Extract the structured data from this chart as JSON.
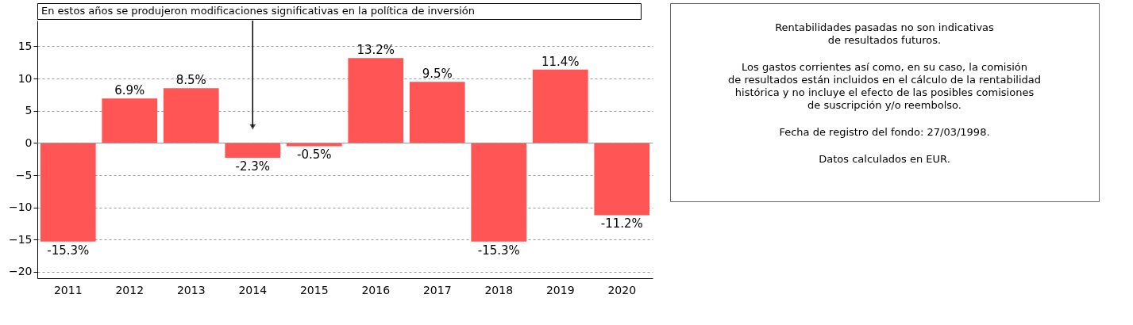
{
  "chart_data": {
    "type": "bar",
    "categories": [
      "2011",
      "2012",
      "2013",
      "2014",
      "2015",
      "2016",
      "2017",
      "2018",
      "2019",
      "2020"
    ],
    "values": [
      -15.3,
      6.9,
      8.5,
      -2.3,
      -0.5,
      13.2,
      9.5,
      -15.3,
      11.4,
      -11.2
    ],
    "value_labels": [
      "-15.3%",
      "6.9%",
      "8.5%",
      "-2.3%",
      "-0.5%",
      "13.2%",
      "9.5%",
      "-15.3%",
      "11.4%",
      "-11.2%"
    ],
    "color": "#ff5555",
    "ylim": [
      -21,
      19
    ],
    "yticks": [
      -20,
      -15,
      -10,
      -5,
      0,
      5,
      10,
      15
    ],
    "grid": "y",
    "annotations": [
      {
        "text": "En estos años se produjeron modificaciones significativas en la política de inversión",
        "x": "2014",
        "y": 2.5
      },
      "Rentabilidades pasadas no son indicativas\nde resultados futuros.",
      "Los gastos corrientes así como, en su caso, la comisión\nde resultados están incluidos en el cálculo de la rentabilidad\nhistórica y no incluye el efecto de las posibles comisiones\nde suscripción y/o reembolso.",
      "Fecha de registro del fondo: 27/03/1998.",
      "Datos calculados en EUR."
    ]
  }
}
